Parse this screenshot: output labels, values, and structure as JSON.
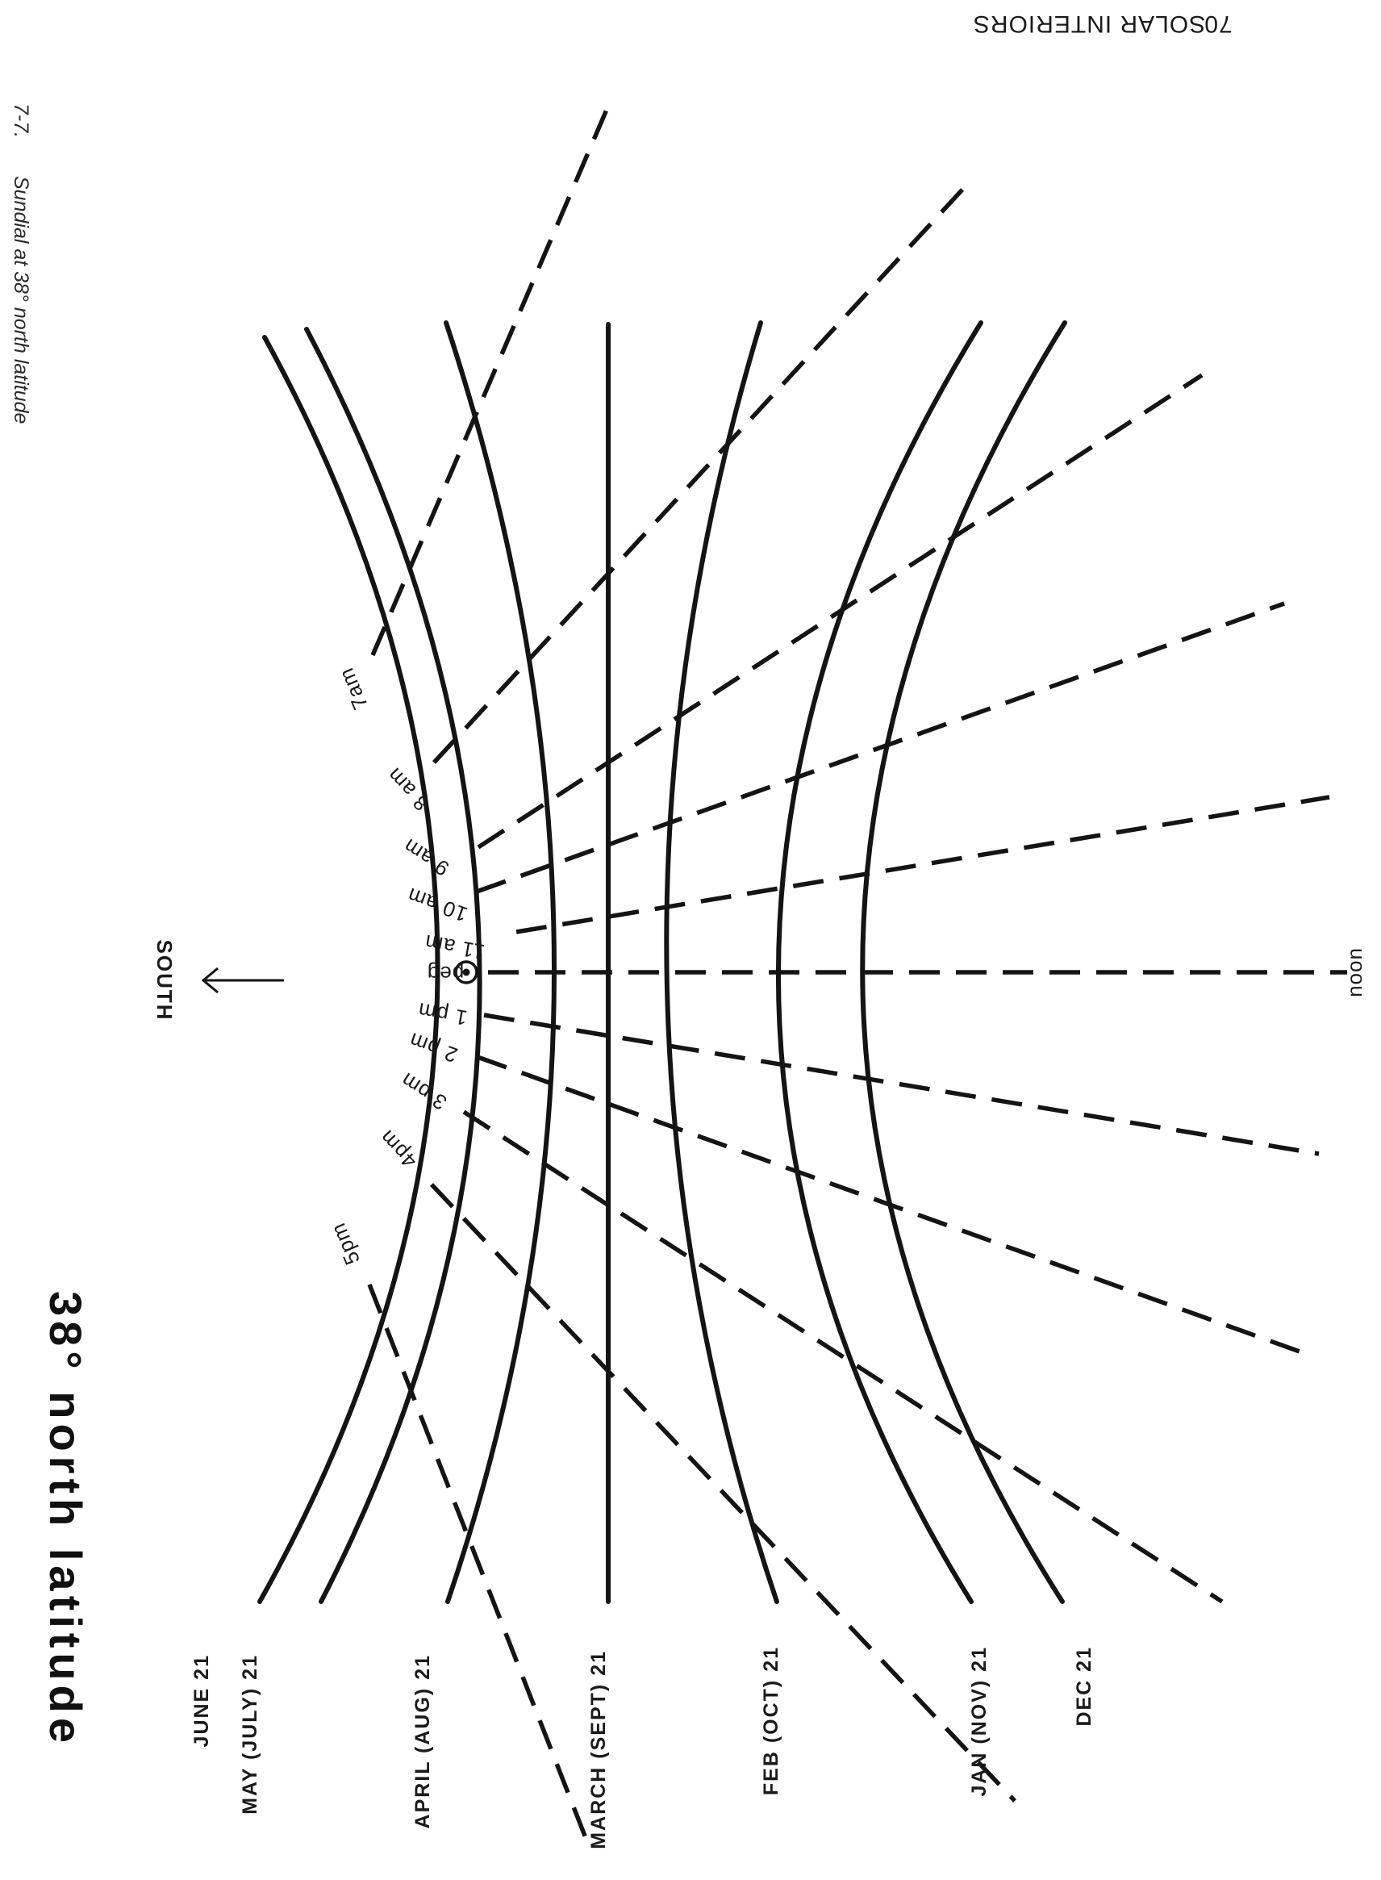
{
  "header": {
    "page_number": "70",
    "running_title": "SOLAR INTERIORS"
  },
  "caption": {
    "figure_number": "7-7.",
    "text": "Sundial at 38° north latitude"
  },
  "title": "38° north latitude",
  "compass": {
    "label": "SOUTH"
  },
  "peg_label": "peg",
  "hour_labels": {
    "h7": "7am",
    "h8": "8 am",
    "h9": "9 am",
    "h10": "10 am",
    "h11": "11 am",
    "h12": "noon",
    "h13": "1 pm",
    "h14": "2 pm",
    "h15": "3 pm",
    "h16": "4pm",
    "h17": "5pm"
  },
  "date_labels": {
    "june": "JUNE 21",
    "may": "MAY (JULY) 21",
    "april": "APRIL (AUG) 21",
    "march": "MARCH (SEPT) 21",
    "feb": "FEB (OCT) 21",
    "jan": "JAN (NOV) 21",
    "dec": "DEC 21"
  },
  "colors": {
    "ink": "#141414",
    "paper": "#ffffff"
  }
}
